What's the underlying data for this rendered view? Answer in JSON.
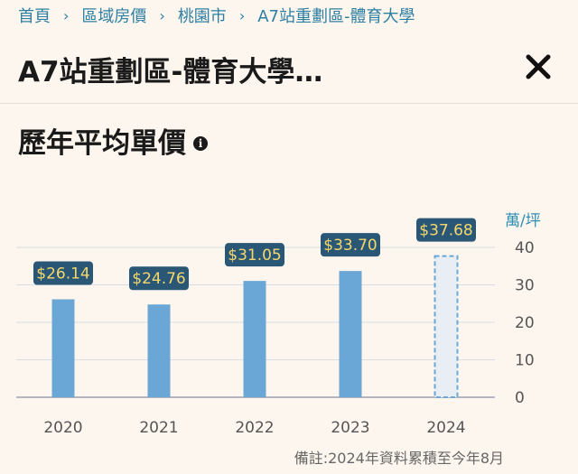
{
  "breadcrumb": {
    "items": [
      "首頁",
      "區域房價",
      "桃園市",
      "A7站重劃區-體育大學"
    ],
    "separator": "›"
  },
  "header": {
    "title": "A7站重劃區-體育大學…"
  },
  "section": {
    "title": "歷年平均單價",
    "info_icon": "info-icon"
  },
  "chart_data": {
    "type": "bar",
    "categories": [
      "2020",
      "2021",
      "2022",
      "2023",
      "2024"
    ],
    "values": [
      26.14,
      24.76,
      31.05,
      33.7,
      37.68
    ],
    "value_labels": [
      "$26.14",
      "$24.76",
      "$31.05",
      "$33.70",
      "$37.68"
    ],
    "ylabel": "萬/坪",
    "ylim": [
      0,
      40
    ],
    "yticks": [
      0,
      10,
      20,
      30,
      40
    ],
    "y_axis_side": "right",
    "grid": true,
    "partial_last_bar": true,
    "colors": {
      "bar": "#6aa7d6",
      "partial_bar_fill": "#e8eef3",
      "partial_bar_stroke": "#6aa7d6",
      "label_bg": "#2a5775",
      "label_text": "#f5d76e",
      "grid": "#d8dde3",
      "axis_label": "#2f8fb3"
    }
  },
  "footnote": "備註:2024年資料累積至今年8月"
}
